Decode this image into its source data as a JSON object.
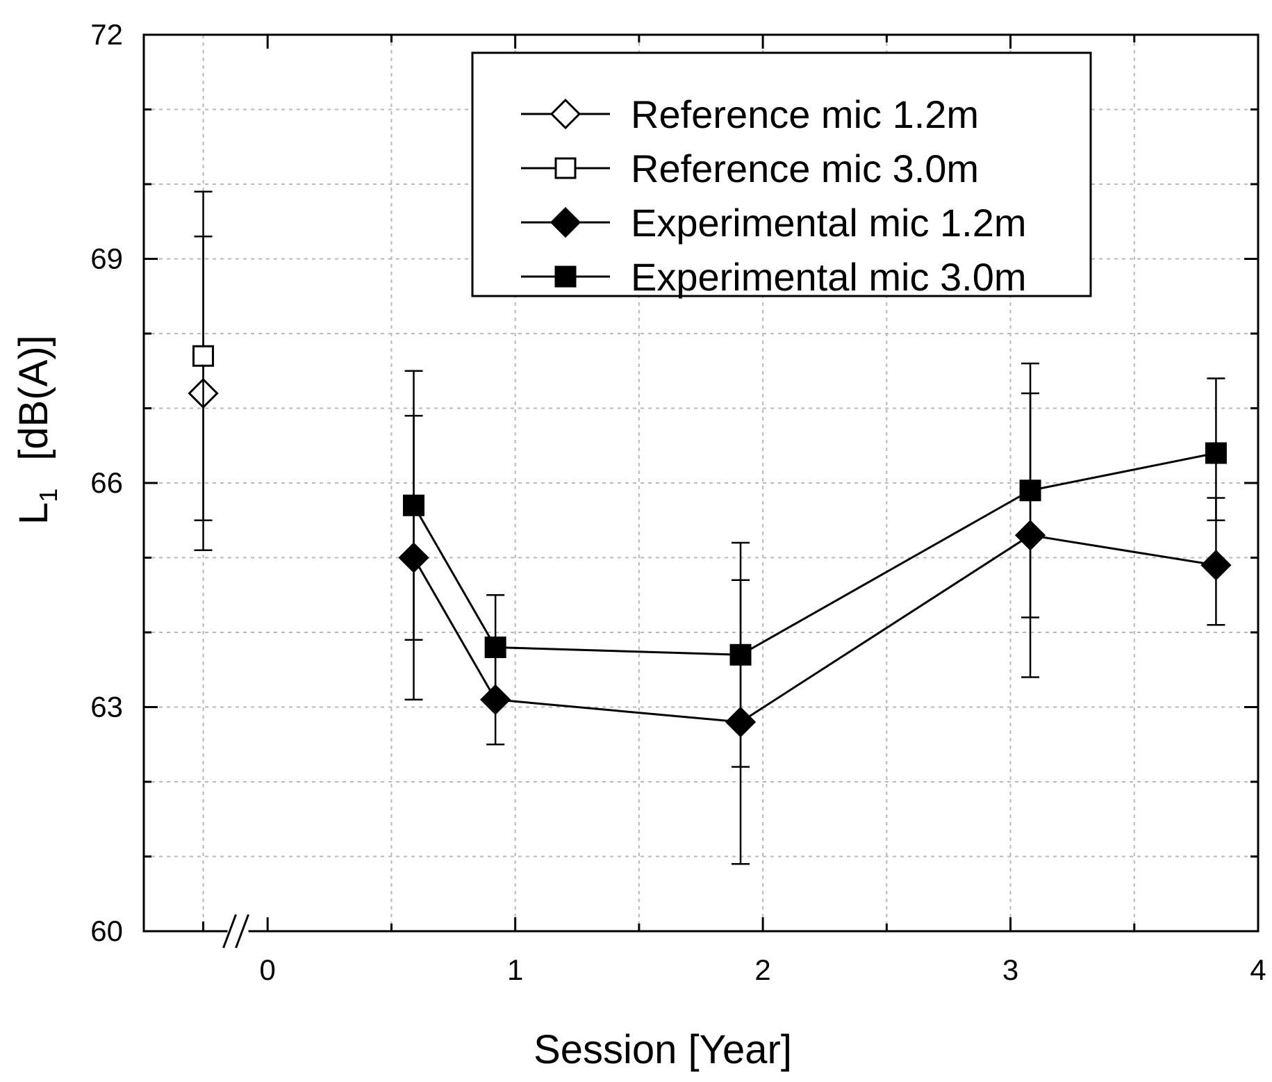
{
  "chart_data": {
    "type": "scatter",
    "xlabel": "Session   [Year]",
    "ylabel_main": "L",
    "ylabel_sub": "1",
    "ylabel_unit": "[dB(A)]",
    "xlim": [
      -0.5,
      4
    ],
    "ylim": [
      60,
      72
    ],
    "x_ticks": [
      0,
      1,
      2,
      3,
      4
    ],
    "y_ticks": [
      60,
      63,
      66,
      69,
      72
    ],
    "x_tick_labels": [
      "0",
      "1",
      "2",
      "3",
      "4"
    ],
    "y_tick_labels": [
      "60",
      "63",
      "66",
      "69",
      "72"
    ],
    "x_minor_step": 0.5,
    "y_minor_step": 1,
    "grid": true,
    "axis_break_at_x": -0.1,
    "legend_position": "top-right",
    "series": [
      {
        "name": "Reference mic 1.2m",
        "marker": "diamond-open",
        "connected": false,
        "points": [
          {
            "x": -0.26,
            "y": 67.2,
            "err_low": 65.1,
            "err_high": 69.3
          }
        ]
      },
      {
        "name": "Reference mic 3.0m",
        "marker": "square-open",
        "connected": false,
        "points": [
          {
            "x": -0.26,
            "y": 67.7,
            "err_low": 65.5,
            "err_high": 69.9
          }
        ]
      },
      {
        "name": "Experimental mic 1.2m",
        "marker": "diamond-filled",
        "connected": true,
        "points": [
          {
            "x": 0.59,
            "y": 65.0,
            "err_low": 63.1,
            "err_high": 66.9
          },
          {
            "x": 0.92,
            "y": 63.1,
            "err_low": 62.5,
            "err_high": 63.8
          },
          {
            "x": 1.91,
            "y": 62.8,
            "err_low": 60.9,
            "err_high": 64.7
          },
          {
            "x": 3.08,
            "y": 65.3,
            "err_low": 63.4,
            "err_high": 67.2
          },
          {
            "x": 3.83,
            "y": 64.9,
            "err_low": 64.1,
            "err_high": 65.8
          }
        ]
      },
      {
        "name": "Experimental mic 3.0m",
        "marker": "square-filled",
        "connected": true,
        "points": [
          {
            "x": 0.59,
            "y": 65.7,
            "err_low": 63.9,
            "err_high": 67.5
          },
          {
            "x": 0.92,
            "y": 63.8,
            "err_low": 63.1,
            "err_high": 64.5
          },
          {
            "x": 1.91,
            "y": 63.7,
            "err_low": 62.2,
            "err_high": 65.2
          },
          {
            "x": 3.08,
            "y": 65.9,
            "err_low": 64.2,
            "err_high": 67.6
          },
          {
            "x": 3.83,
            "y": 66.4,
            "err_low": 65.5,
            "err_high": 67.4
          }
        ]
      }
    ]
  }
}
